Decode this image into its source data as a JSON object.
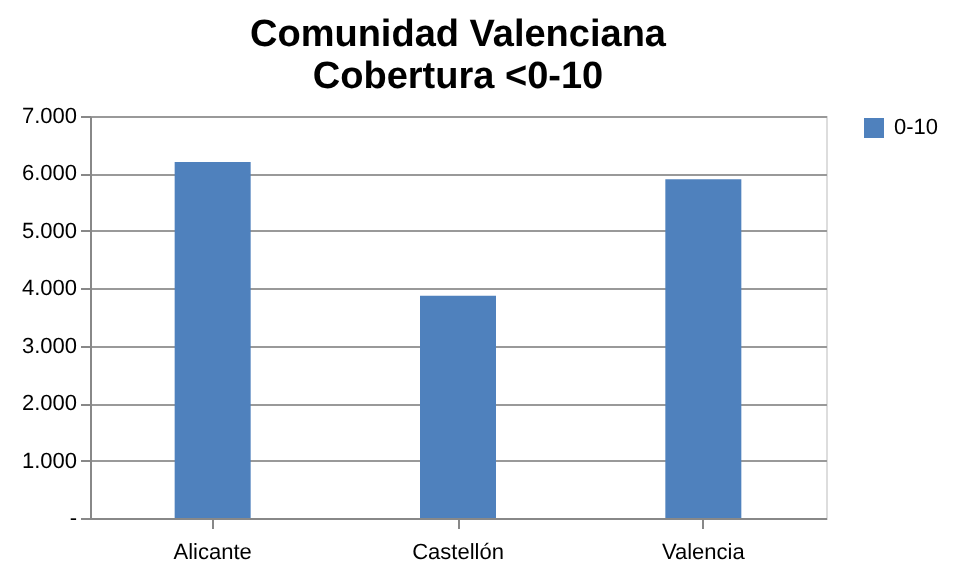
{
  "chart_data": {
    "type": "bar",
    "title": "Comunidad Valenciana\nCobertura <0-10",
    "categories": [
      "Alicante",
      "Castellón",
      "Valencia"
    ],
    "series": [
      {
        "name": "0-10",
        "color": "#4f81bd",
        "values": [
          6200,
          3870,
          5900
        ]
      }
    ],
    "ylim": [
      0,
      7000
    ],
    "yticks": [
      {
        "value": 0,
        "label": "-"
      },
      {
        "value": 1000,
        "label": "1.000"
      },
      {
        "value": 2000,
        "label": "2.000"
      },
      {
        "value": 3000,
        "label": "3.000"
      },
      {
        "value": 4000,
        "label": "4.000"
      },
      {
        "value": 5000,
        "label": "5.000"
      },
      {
        "value": 6000,
        "label": "6.000"
      },
      {
        "value": 7000,
        "label": "7.000"
      }
    ],
    "grid": "y",
    "legend": "right"
  }
}
